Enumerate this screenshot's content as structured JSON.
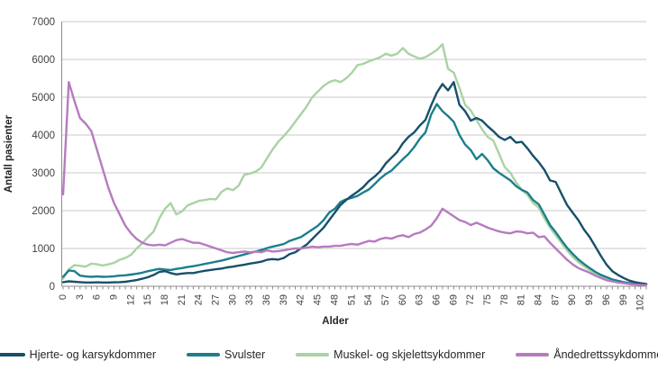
{
  "chart_data": {
    "type": "line",
    "title": "",
    "xlabel": "Alder",
    "ylabel": "Antall pasienter",
    "ylim": [
      0,
      7000
    ],
    "y_ticks": [
      0,
      1000,
      2000,
      3000,
      4000,
      5000,
      6000,
      7000
    ],
    "x_ticks": [
      "0",
      "3",
      "6",
      "9",
      "12",
      "15",
      "18",
      "21",
      "24",
      "27",
      "30",
      "33",
      "36",
      "39",
      "42",
      "45",
      "48",
      "51",
      "54",
      "57",
      "60",
      "63",
      "66",
      "69",
      "72",
      "75",
      "78",
      "81",
      "84",
      "87",
      "90",
      "93",
      "96",
      "99",
      "102"
    ],
    "x_tick_step": 3,
    "age_start": 0,
    "age_step": 1,
    "grid": "horizontal",
    "legend_position": "bottom",
    "colors": {
      "gridline": "#c9c9c9",
      "axis": "#8c8c8c",
      "tick_label": "#404040",
      "axis_title": "#262626"
    },
    "series": [
      {
        "name": "Hjerte- og karsykdommer",
        "color": "#17506b",
        "values": [
          110,
          130,
          120,
          110,
          100,
          100,
          105,
          100,
          100,
          105,
          110,
          120,
          140,
          165,
          200,
          240,
          300,
          380,
          400,
          350,
          315,
          335,
          350,
          350,
          380,
          410,
          430,
          450,
          470,
          500,
          520,
          545,
          570,
          600,
          625,
          650,
          700,
          720,
          705,
          750,
          850,
          900,
          1000,
          1100,
          1250,
          1400,
          1550,
          1750,
          1950,
          2150,
          2280,
          2400,
          2500,
          2620,
          2780,
          2900,
          3040,
          3250,
          3400,
          3550,
          3780,
          3950,
          4070,
          4250,
          4400,
          4780,
          5120,
          5350,
          5180,
          5400,
          4800,
          4630,
          4380,
          4450,
          4380,
          4230,
          4100,
          3950,
          3870,
          3950,
          3800,
          3820,
          3650,
          3450,
          3280,
          3080,
          2800,
          2760,
          2450,
          2150,
          1950,
          1750,
          1500,
          1300,
          1050,
          800,
          570,
          400,
          300,
          220,
          150,
          110,
          80,
          60
        ]
      },
      {
        "name": "Svulster",
        "color": "#1b7f8c",
        "values": [
          250,
          420,
          400,
          280,
          260,
          250,
          260,
          250,
          255,
          265,
          280,
          290,
          310,
          330,
          360,
          400,
          430,
          460,
          440,
          430,
          460,
          480,
          510,
          530,
          560,
          590,
          620,
          650,
          680,
          720,
          760,
          800,
          840,
          880,
          920,
          960,
          1010,
          1050,
          1080,
          1120,
          1200,
          1250,
          1300,
          1400,
          1500,
          1600,
          1750,
          1950,
          2050,
          2230,
          2300,
          2340,
          2390,
          2480,
          2560,
          2700,
          2850,
          2970,
          3060,
          3210,
          3360,
          3500,
          3680,
          3900,
          4070,
          4540,
          4820,
          4630,
          4500,
          4350,
          4000,
          3750,
          3600,
          3360,
          3500,
          3330,
          3120,
          3000,
          2900,
          2800,
          2650,
          2550,
          2480,
          2280,
          2170,
          1900,
          1620,
          1430,
          1220,
          1020,
          860,
          710,
          590,
          480,
          380,
          300,
          240,
          180,
          145,
          110,
          85,
          65,
          50,
          40
        ]
      },
      {
        "name": "Muskel- og skjelettsykdommer",
        "color": "#a9d3a4",
        "values": [
          200,
          450,
          560,
          540,
          520,
          600,
          580,
          550,
          580,
          620,
          700,
          750,
          830,
          1000,
          1140,
          1300,
          1450,
          1800,
          2050,
          2200,
          1900,
          1980,
          2140,
          2200,
          2260,
          2280,
          2310,
          2300,
          2500,
          2590,
          2540,
          2660,
          2950,
          2980,
          3030,
          3140,
          3380,
          3620,
          3820,
          3980,
          4150,
          4350,
          4550,
          4750,
          5000,
          5150,
          5300,
          5400,
          5450,
          5400,
          5500,
          5650,
          5850,
          5880,
          5950,
          6000,
          6060,
          6150,
          6100,
          6150,
          6300,
          6150,
          6080,
          6020,
          6060,
          6150,
          6250,
          6400,
          5750,
          5650,
          5250,
          4800,
          4650,
          4400,
          4150,
          3950,
          3850,
          3500,
          3150,
          3000,
          2750,
          2550,
          2420,
          2200,
          2080,
          1800,
          1550,
          1350,
          1150,
          950,
          780,
          640,
          530,
          430,
          340,
          270,
          210,
          160,
          120,
          95,
          75,
          60,
          45,
          35
        ]
      },
      {
        "name": "Åndedrettssykdommer",
        "color": "#b67bbf",
        "values": [
          2430,
          5400,
          4900,
          4450,
          4300,
          4100,
          3600,
          3100,
          2600,
          2200,
          1900,
          1600,
          1400,
          1250,
          1150,
          1100,
          1080,
          1100,
          1080,
          1150,
          1220,
          1250,
          1200,
          1150,
          1150,
          1100,
          1050,
          1000,
          950,
          900,
          880,
          900,
          920,
          900,
          920,
          900,
          950,
          920,
          930,
          950,
          980,
          1000,
          1000,
          1020,
          1050,
          1030,
          1050,
          1050,
          1070,
          1070,
          1100,
          1120,
          1100,
          1150,
          1200,
          1180,
          1250,
          1280,
          1260,
          1320,
          1350,
          1300,
          1380,
          1420,
          1500,
          1600,
          1800,
          2050,
          1950,
          1850,
          1750,
          1700,
          1620,
          1680,
          1620,
          1550,
          1500,
          1450,
          1420,
          1400,
          1450,
          1440,
          1400,
          1420,
          1300,
          1320,
          1150,
          1000,
          850,
          700,
          580,
          480,
          420,
          360,
          280,
          220,
          160,
          130,
          100,
          80,
          60,
          45,
          35,
          30
        ]
      }
    ]
  }
}
